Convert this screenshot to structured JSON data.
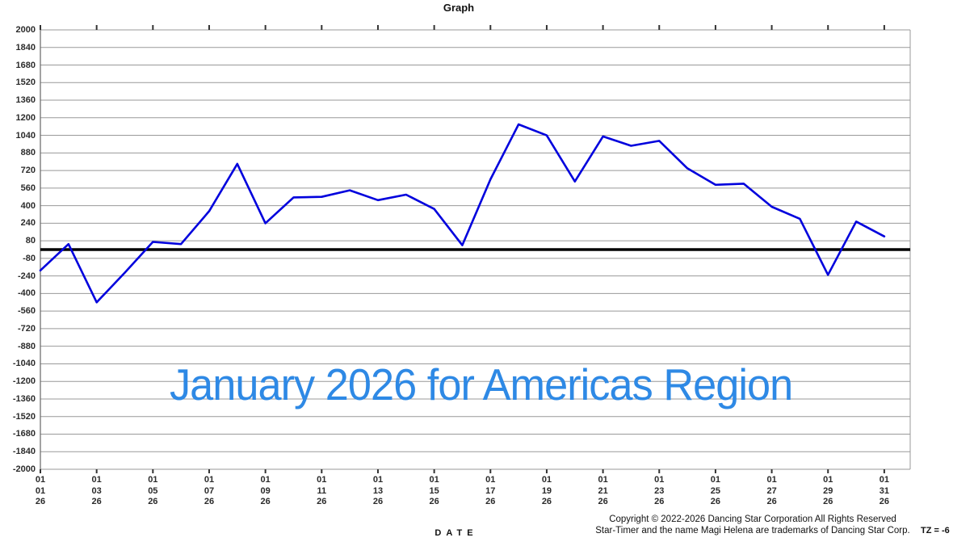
{
  "title": "Graph",
  "watermark": "January 2026 for Americas Region",
  "footer": {
    "copyright_line1": "Copyright © 2022-2026 Dancing Star Corporation All Rights Reserved",
    "copyright_line2": "Star-Timer and the name Magi Helena are trademarks of Dancing Star Corp.",
    "timezone": "TZ = -6"
  },
  "chart_data": {
    "type": "line",
    "title": "Graph",
    "xlabel": "DATE",
    "ylabel": "",
    "ylim": [
      -2000,
      2000
    ],
    "y_ticks": [
      2000,
      1840,
      1680,
      1520,
      1360,
      1200,
      1040,
      880,
      720,
      560,
      400,
      240,
      80,
      -80,
      -240,
      -400,
      -560,
      -720,
      -880,
      -1040,
      -1200,
      -1360,
      -1520,
      -1680,
      -1840,
      -2000
    ],
    "x_tick_days": [
      1,
      3,
      5,
      7,
      9,
      11,
      13,
      15,
      17,
      19,
      21,
      23,
      25,
      27,
      29,
      31
    ],
    "dates": [
      "01/01/26",
      "01/02/26",
      "01/03/26",
      "01/04/26",
      "01/05/26",
      "01/06/26",
      "01/07/26",
      "01/08/26",
      "01/09/26",
      "01/10/26",
      "01/11/26",
      "01/12/26",
      "01/13/26",
      "01/14/26",
      "01/15/26",
      "01/16/26",
      "01/17/26",
      "01/18/26",
      "01/19/26",
      "01/20/26",
      "01/21/26",
      "01/22/26",
      "01/23/26",
      "01/24/26",
      "01/25/26",
      "01/26/26",
      "01/27/26",
      "01/28/26",
      "01/29/26",
      "01/30/26",
      "01/31/26"
    ],
    "values": [
      -190,
      50,
      -480,
      -210,
      70,
      50,
      350,
      780,
      240,
      475,
      480,
      540,
      450,
      500,
      370,
      40,
      640,
      1140,
      1040,
      620,
      1030,
      945,
      990,
      740,
      590,
      600,
      390,
      280,
      -230,
      255,
      120
    ],
    "zero_line": true,
    "grid": true,
    "legend": false,
    "colors": {
      "line": "#0101dd",
      "zero_line": "#000000",
      "grid": "#999999",
      "axis": "#666666",
      "tick": "#333333",
      "watermark": "#2e89e5"
    }
  }
}
